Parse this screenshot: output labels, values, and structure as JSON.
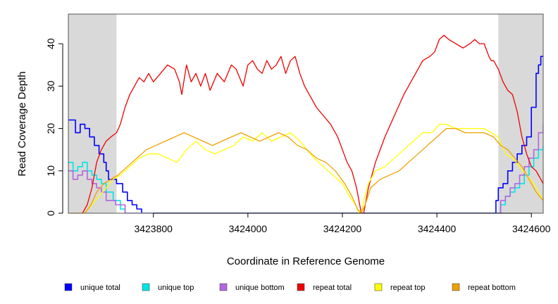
{
  "chart_data": {
    "type": "line",
    "title": "",
    "xlabel": "Coordinate in Reference Genome",
    "ylabel": "Read Coverage Depth",
    "xlim": [
      3423620,
      3424625
    ],
    "ylim": [
      0,
      47
    ],
    "x_ticks": [
      3423800,
      3424000,
      3424200,
      3424400,
      3424600
    ],
    "x_tick_labels": [
      "3423800",
      "3424000",
      "3424200",
      "3424400",
      "3424600"
    ],
    "y_ticks": [
      0,
      10,
      20,
      30,
      40
    ],
    "y_tick_labels": [
      "0",
      "10",
      "20",
      "30",
      "40"
    ],
    "shaded_regions": [
      [
        3423620,
        3423722
      ],
      [
        3424530,
        3424625
      ]
    ],
    "shaded_color": "#d9d9d9",
    "grid": false,
    "legend_position": "bottom",
    "series": [
      {
        "name": "unique total",
        "color": "#0000ff",
        "step": true,
        "x": [
          3423620,
          3423630,
          3423635,
          3423645,
          3423655,
          3423665,
          3423675,
          3423685,
          3423695,
          3423700,
          3423705,
          3423722,
          3423735,
          3423745,
          3423755,
          3423765,
          3423775,
          3423780,
          3424520,
          3424525,
          3424530,
          3424540,
          3424550,
          3424560,
          3424570,
          3424580,
          3424590,
          3424600,
          3424610,
          3424615,
          3424620,
          3424625
        ],
        "y": [
          22,
          22,
          19,
          21,
          20,
          18,
          16,
          14,
          12,
          10,
          8,
          7,
          5,
          3,
          2,
          1,
          0,
          0,
          0,
          3,
          6,
          7,
          10,
          12,
          14,
          16,
          18,
          25,
          33,
          35,
          37,
          37
        ]
      },
      {
        "name": "unique top",
        "color": "#00e5e5",
        "step": true,
        "x": [
          3423620,
          3423630,
          3423640,
          3423650,
          3423660,
          3423670,
          3423680,
          3423690,
          3423700,
          3423715,
          3423730,
          3423740,
          3424525,
          3424535,
          3424545,
          3424555,
          3424565,
          3424575,
          3424585,
          3424595,
          3424605,
          3424615,
          3424625
        ],
        "y": [
          12,
          10,
          11,
          12,
          10,
          9,
          8,
          7,
          5,
          3,
          1,
          0,
          0,
          2,
          4,
          5,
          6,
          7,
          9,
          11,
          13,
          15,
          16
        ]
      },
      {
        "name": "unique bottom",
        "color": "#b266e0",
        "step": true,
        "x": [
          3423620,
          3423630,
          3423640,
          3423650,
          3423660,
          3423670,
          3423680,
          3423690,
          3423700,
          3423720,
          3423740,
          3424525,
          3424535,
          3424545,
          3424555,
          3424565,
          3424575,
          3424585,
          3424595,
          3424605,
          3424615,
          3424625
        ],
        "y": [
          10,
          8,
          9,
          10,
          8,
          7,
          6,
          5,
          3,
          2,
          0,
          0,
          3,
          4,
          6,
          7,
          9,
          11,
          13,
          15,
          19,
          21
        ]
      },
      {
        "name": "repeat total",
        "color": "#ee0000",
        "step": false,
        "x": [
          3423620,
          3423650,
          3423660,
          3423670,
          3423680,
          3423690,
          3423700,
          3423710,
          3423722,
          3423730,
          3423740,
          3423750,
          3423760,
          3423770,
          3423780,
          3423790,
          3423800,
          3423815,
          3423830,
          3423845,
          3423855,
          3423860,
          3423870,
          3423880,
          3423890,
          3423900,
          3423910,
          3423920,
          3423935,
          3423950,
          3423965,
          3423975,
          3423990,
          3424000,
          3424010,
          3424020,
          3424030,
          3424040,
          3424050,
          3424060,
          3424070,
          3424080,
          3424090,
          3424100,
          3424110,
          3424120,
          3424130,
          3424145,
          3424160,
          3424175,
          3424190,
          3424200,
          3424210,
          3424220,
          3424230,
          3424235,
          3424240,
          3424245,
          3424255,
          3424270,
          3424290,
          3424310,
          3424330,
          3424350,
          3424370,
          3424385,
          3424395,
          3424405,
          3424415,
          3424425,
          3424440,
          3424455,
          3424470,
          3424480,
          3424490,
          3424500,
          3424510,
          3424515,
          3424520,
          3424530,
          3424540,
          3424550,
          3424560,
          3424570,
          3424580,
          3424590,
          3424600,
          3424610,
          3424620,
          3424625
        ],
        "y": [
          0,
          0,
          2,
          6,
          12,
          15,
          17,
          18,
          19,
          21,
          25,
          28,
          30,
          32,
          31,
          33,
          31,
          33,
          35,
          34,
          31,
          28,
          35,
          31,
          33,
          30,
          33,
          29,
          33,
          31,
          35,
          34,
          30,
          35,
          36,
          34,
          33,
          36,
          34,
          35,
          37,
          33,
          36,
          37,
          33,
          30,
          28,
          25,
          23,
          21,
          18,
          15,
          12,
          10,
          6,
          3,
          0,
          0,
          6,
          12,
          18,
          23,
          28,
          32,
          36,
          37,
          38,
          41,
          42,
          41,
          40,
          39,
          40,
          41,
          40,
          40,
          37,
          36,
          36,
          34,
          31,
          29,
          28,
          24,
          18,
          14,
          11,
          10,
          8,
          7
        ]
      },
      {
        "name": "repeat top",
        "color": "#ffff00",
        "step": false,
        "x": [
          3423620,
          3423655,
          3423670,
          3423685,
          3423700,
          3423715,
          3423730,
          3423750,
          3423770,
          3423790,
          3423810,
          3423830,
          3423850,
          3423870,
          3423890,
          3423910,
          3423930,
          3423950,
          3423970,
          3423990,
          3424010,
          3424030,
          3424050,
          3424070,
          3424090,
          3424110,
          3424125,
          3424140,
          3424160,
          3424180,
          3424200,
          3424215,
          3424228,
          3424235,
          3424240,
          3424245,
          3424255,
          3424270,
          3424290,
          3424310,
          3424330,
          3424350,
          3424370,
          3424390,
          3424405,
          3424420,
          3424440,
          3424460,
          3424480,
          3424500,
          3424515,
          3424530,
          3424545,
          3424560,
          3424575,
          3424590,
          3424605,
          3424615,
          3424625
        ],
        "y": [
          0,
          0,
          2,
          4,
          6,
          8,
          9,
          11,
          13,
          14,
          14,
          13,
          12,
          15,
          17,
          15,
          14,
          15,
          16,
          18,
          17,
          19,
          17,
          18,
          19,
          17,
          15,
          13,
          11,
          9,
          7,
          4,
          2,
          0,
          0,
          3,
          7,
          10,
          11,
          13,
          15,
          17,
          19,
          19,
          21,
          21,
          20,
          20,
          20,
          20,
          19,
          18,
          14,
          13,
          11,
          9,
          7,
          5,
          3
        ]
      },
      {
        "name": "repeat bottom",
        "color": "#f0a000",
        "step": false,
        "x": [
          3423620,
          3423655,
          3423668,
          3423680,
          3423695,
          3423710,
          3423725,
          3423745,
          3423765,
          3423785,
          3423805,
          3423825,
          3423845,
          3423865,
          3423885,
          3423905,
          3423925,
          3423945,
          3423965,
          3423985,
          3424005,
          3424025,
          3424045,
          3424065,
          3424085,
          3424105,
          3424125,
          3424145,
          3424165,
          3424185,
          3424205,
          3424220,
          3424232,
          3424240,
          3424248,
          3424260,
          3424280,
          3424300,
          3424320,
          3424340,
          3424360,
          3424380,
          3424400,
          3424420,
          3424440,
          3424460,
          3424480,
          3424500,
          3424520,
          3424535,
          3424550,
          3424565,
          3424580,
          3424595,
          3424610,
          3424625
        ],
        "y": [
          0,
          0,
          2,
          5,
          7,
          8,
          9,
          11,
          13,
          15,
          16,
          17,
          18,
          19,
          18,
          17,
          16,
          17,
          18,
          19,
          18,
          17,
          18,
          19,
          18,
          16,
          15,
          13,
          12,
          10,
          7,
          4,
          1,
          0,
          2,
          6,
          8,
          9,
          10,
          12,
          14,
          16,
          18,
          20,
          20,
          19,
          19,
          19,
          18,
          16,
          15,
          13,
          11,
          8,
          5,
          3
        ]
      }
    ]
  }
}
